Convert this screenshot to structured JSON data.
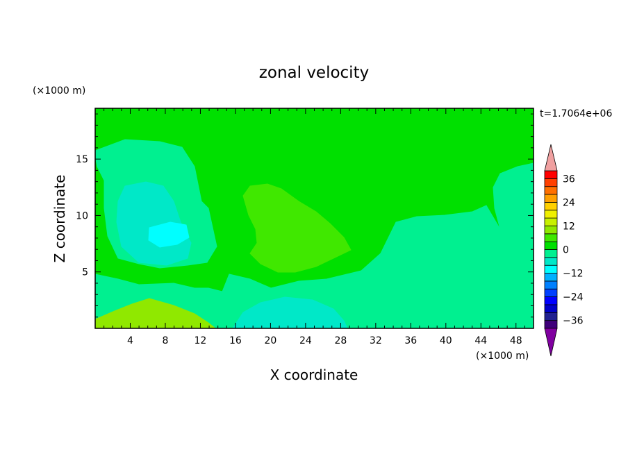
{
  "chart_data": {
    "type": "heatmap",
    "title": "zonal velocity",
    "xlabel": "X coordinate",
    "ylabel": "Z coordinate",
    "x_units": "(×1000 m)",
    "y_units": "(×1000 m)",
    "time_label": "t=1.7064e+06",
    "xlim": [
      0,
      50
    ],
    "ylim": [
      0,
      19.5
    ],
    "x_ticks": [
      4,
      8,
      12,
      16,
      20,
      24,
      28,
      32,
      36,
      40,
      44,
      48
    ],
    "y_ticks": [
      5,
      10,
      15
    ],
    "colorbar": {
      "levels": [
        -40,
        -36,
        -32,
        -28,
        -24,
        -20,
        -16,
        -12,
        -8,
        -4,
        0,
        4,
        8,
        12,
        16,
        20,
        24,
        28,
        32,
        36,
        40
      ],
      "tick_labels": [
        "36",
        "24",
        "12",
        "0",
        "−12",
        "−24",
        "−36"
      ],
      "tick_values": [
        36,
        24,
        12,
        0,
        -12,
        -24,
        -36
      ],
      "colors": [
        "#3f007a",
        "#202090",
        "#0000c8",
        "#0000ff",
        "#0040ff",
        "#0080ff",
        "#00b0ff",
        "#00ffff",
        "#00e8c8",
        "#00f090",
        "#00e000",
        "#40e800",
        "#90e800",
        "#c8f000",
        "#f0f000",
        "#ffd000",
        "#ffa000",
        "#ff7000",
        "#ff4000",
        "#ff0000"
      ],
      "under_color": "#8000a0",
      "over_color": "#f0a0a0"
    },
    "regions": [
      {
        "value": 2,
        "color": "#00e000",
        "label": "main body 0 to 4"
      },
      {
        "value": -6,
        "color": "#00f090",
        "label": "upper right -8 to -4"
      },
      {
        "value": -6,
        "color": "#00f090",
        "label": "mid right -8 to -4"
      },
      {
        "value": -6,
        "color": "#00f090",
        "label": "left cell -8 to -4"
      },
      {
        "value": -10,
        "color": "#00e8c8",
        "label": "left core -12 to -8"
      },
      {
        "value": -14,
        "color": "#00ffff",
        "label": "left center -16 to -12"
      },
      {
        "value": 6,
        "color": "#40e800",
        "label": "center tongue 4 to 8"
      },
      {
        "value": -6,
        "color": "#00f090",
        "label": "lower band -8 to -4"
      },
      {
        "value": -10,
        "color": "#00e8c8",
        "label": "bottom center -12 to -8"
      },
      {
        "value": 10,
        "color": "#90e800",
        "label": "bottom left 8 to 12"
      }
    ]
  }
}
